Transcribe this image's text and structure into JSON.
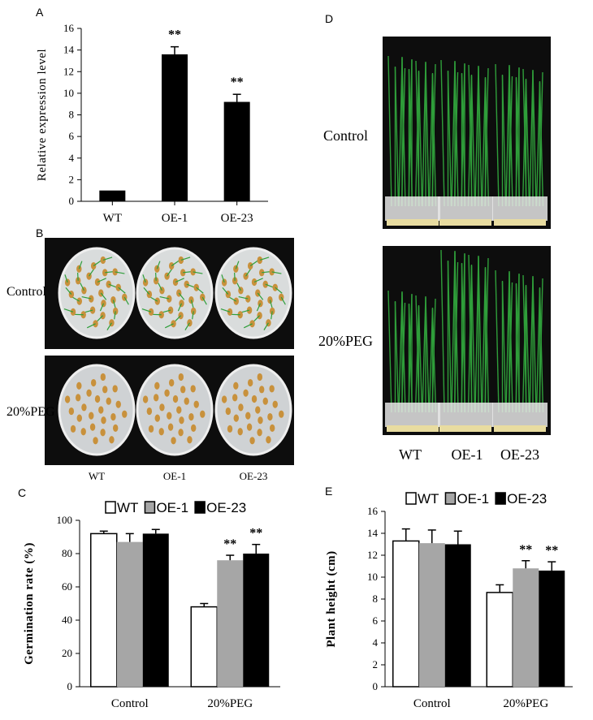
{
  "panels": {
    "A": {
      "letter": "A"
    },
    "B": {
      "letter": "B",
      "rows": [
        "Control",
        "20%PEG"
      ],
      "cols": [
        "WT",
        "OE-1",
        "OE-23"
      ]
    },
    "C": {
      "letter": "C"
    },
    "D": {
      "letter": "D",
      "rows": [
        "Control",
        "20%PEG"
      ],
      "cols": [
        "WT",
        "OE-1",
        "OE-23"
      ]
    },
    "E": {
      "letter": "E"
    }
  },
  "colors": {
    "WT": "#ffffff",
    "OE-1": "#a6a6a6",
    "OE-23": "#000000",
    "photo_bg": "#0d0d0d",
    "seedling_green": "#2f9e3a",
    "seed": "#c8913c"
  },
  "chart_data": [
    {
      "id": "A",
      "type": "bar",
      "ylabel": "Relative expression level",
      "categories": [
        "WT",
        "OE-1",
        "OE-23"
      ],
      "values": [
        1.0,
        13.6,
        9.2
      ],
      "errors": [
        0.0,
        0.7,
        0.7
      ],
      "significance": [
        "",
        "**",
        "**"
      ],
      "ylim": [
        0,
        16
      ],
      "yticks": [
        0,
        2,
        4,
        6,
        8,
        10,
        12,
        14,
        16
      ],
      "bar_color": "#000000"
    },
    {
      "id": "C",
      "type": "bar",
      "ylabel": "Germination rate (%)",
      "categories": [
        "Control",
        "20%PEG"
      ],
      "series": [
        {
          "name": "WT",
          "values": [
            92,
            48
          ],
          "errors": [
            1.5,
            2
          ],
          "significance": [
            "",
            ""
          ]
        },
        {
          "name": "OE-1",
          "values": [
            87,
            76
          ],
          "errors": [
            5,
            3
          ],
          "significance": [
            "",
            "**"
          ]
        },
        {
          "name": "OE-23",
          "values": [
            92,
            80
          ],
          "errors": [
            2.5,
            5.5
          ],
          "significance": [
            "",
            "**"
          ]
        }
      ],
      "ylim": [
        0,
        100
      ],
      "yticks": [
        0,
        20,
        40,
        60,
        80,
        100
      ],
      "legend": "top"
    },
    {
      "id": "E",
      "type": "bar",
      "ylabel": "Plant height (cm)",
      "categories": [
        "Control",
        "20%PEG"
      ],
      "series": [
        {
          "name": "WT",
          "values": [
            13.3,
            8.6
          ],
          "errors": [
            1.1,
            0.7
          ],
          "significance": [
            "",
            ""
          ]
        },
        {
          "name": "OE-1",
          "values": [
            13.1,
            10.8
          ],
          "errors": [
            1.2,
            0.7
          ],
          "significance": [
            "",
            "**"
          ]
        },
        {
          "name": "OE-23",
          "values": [
            13.0,
            10.6
          ],
          "errors": [
            1.2,
            0.8
          ],
          "significance": [
            "",
            "**"
          ]
        }
      ],
      "ylim": [
        0,
        16
      ],
      "yticks": [
        0,
        2,
        4,
        6,
        8,
        10,
        12,
        14,
        16
      ],
      "legend": "top"
    }
  ]
}
